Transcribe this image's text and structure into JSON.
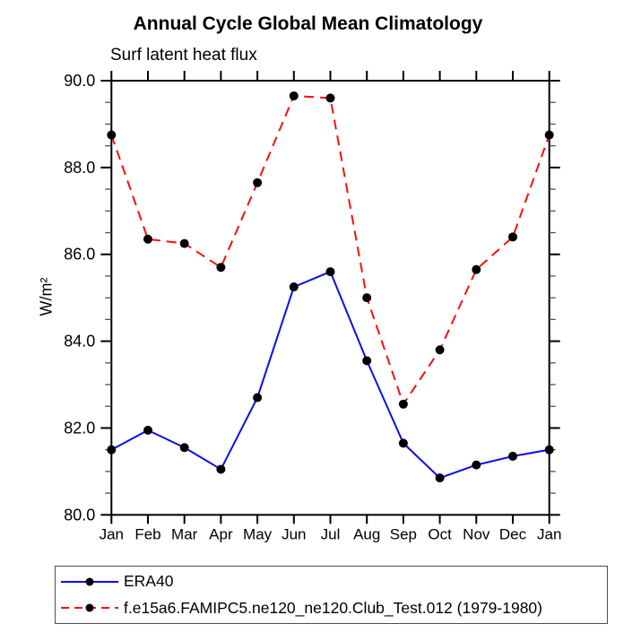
{
  "chart_data": {
    "type": "line",
    "title": "Annual Cycle Global Mean Climatology",
    "subtitle": "Surf latent heat flux",
    "ylabel": "W/m²",
    "xlabel": "",
    "categories": [
      "Jan",
      "Feb",
      "Mar",
      "Apr",
      "May",
      "Jun",
      "Jul",
      "Aug",
      "Sep",
      "Oct",
      "Nov",
      "Dec",
      "Jan"
    ],
    "ylim": [
      80.0,
      90.0
    ],
    "yticks": [
      80.0,
      82.0,
      84.0,
      86.0,
      88.0,
      90.0
    ],
    "ytick_format_decimals": 1,
    "y_minor_step": 0.5,
    "grid": false,
    "legend_position": "bottom-left",
    "marker": "filled-circle",
    "marker_color": "#000000",
    "frame_color": "#000000",
    "series": [
      {
        "name": "ERA40",
        "color": "#0b0bee",
        "line_style": "solid",
        "values": [
          81.5,
          81.95,
          81.55,
          81.05,
          82.7,
          85.25,
          85.6,
          83.55,
          81.65,
          80.85,
          81.15,
          81.35,
          81.5
        ]
      },
      {
        "name": "f.e15a6.FAMIPC5.ne120_ne120.Club_Test.012 (1979-1980)",
        "color": "#ff0c0c",
        "line_style": "dashed",
        "values": [
          88.75,
          86.35,
          86.25,
          85.7,
          87.65,
          89.65,
          89.6,
          85.0,
          82.55,
          83.8,
          85.65,
          86.4,
          88.75
        ]
      }
    ]
  }
}
